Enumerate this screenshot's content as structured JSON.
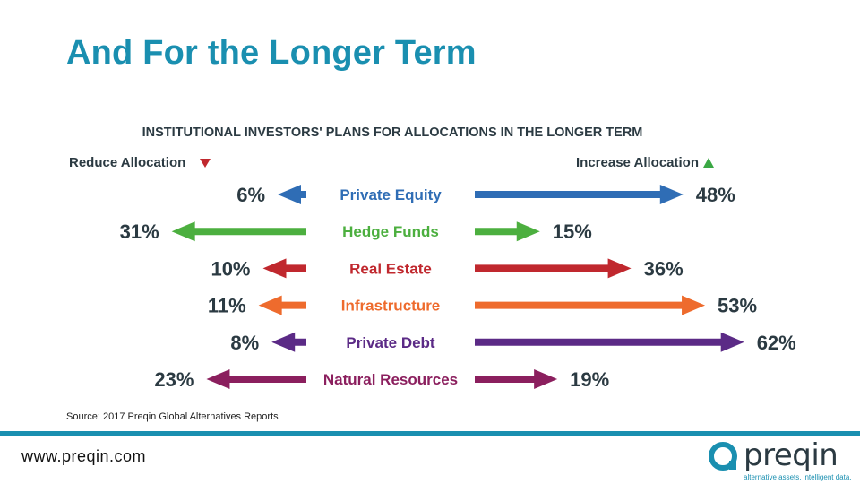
{
  "slide": {
    "title": "And For the Longer Term",
    "source": "Source: 2017 Preqin Global Alternatives Reports",
    "website": "www.preqin.com"
  },
  "logo": {
    "name": "preqin",
    "tagline": "alternative assets. intelligent data."
  },
  "chart_data": {
    "type": "bar",
    "title": "INSTITUTIONAL INVESTORS' PLANS FOR ALLOCATIONS IN THE LONGER TERM",
    "left_label": "Reduce Allocation",
    "right_label": "Increase Allocation",
    "unit": "%",
    "categories": [
      "Private Equity",
      "Hedge Funds",
      "Real Estate",
      "Infrastructure",
      "Private Debt",
      "Natural Resources"
    ],
    "series": [
      {
        "name": "Reduce Allocation",
        "values": [
          6,
          31,
          10,
          11,
          8,
          23
        ]
      },
      {
        "name": "Increase Allocation",
        "values": [
          48,
          15,
          36,
          53,
          62,
          19
        ]
      }
    ],
    "colors": [
      "#2f6db5",
      "#4caf3f",
      "#c0282e",
      "#ee6b2d",
      "#5b2a86",
      "#8b1f5e"
    ],
    "down_marker_color": "#c0282e",
    "up_marker_color": "#3aa844"
  }
}
